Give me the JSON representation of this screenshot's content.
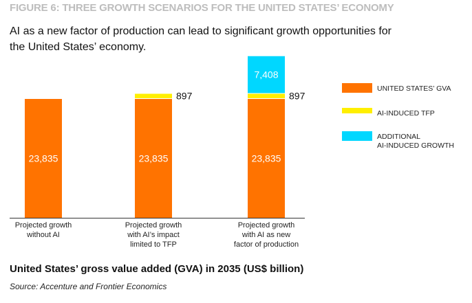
{
  "figure_label": "FIGURE 6: THREE GROWTH SCENARIOS FOR THE UNITED STATES’ ECONOMY",
  "subtitle": "AI as a new factor of production can lead to significant growth opportunities for the United States’ economy.",
  "chart_data": {
    "type": "bar",
    "stacked": true,
    "title": "United States’ gross value added (GVA) in 2035 (US$ billion)",
    "categories": [
      [
        "Projected growth",
        "without AI"
      ],
      [
        "Projected growth",
        "with AI’s impact",
        "limited to TFP"
      ],
      [
        "Projected growth",
        "with AI as new",
        "factor of production"
      ]
    ],
    "series": [
      {
        "name": "UNITED STATES’ GVA",
        "color": "#ff7300",
        "values": [
          23835,
          23835,
          23835
        ],
        "labels": [
          "23,835",
          "23,835",
          "23,835"
        ]
      },
      {
        "name": "AI-INDUCED TFP",
        "color": "#ffef00",
        "values": [
          0,
          897,
          897
        ],
        "labels": [
          "",
          "897",
          "897"
        ]
      },
      {
        "name": "ADDITIONAL AI-INDUCED GROWTH",
        "color": "#00d7ff",
        "values": [
          0,
          0,
          7408
        ],
        "labels": [
          "",
          "",
          "7,408"
        ]
      }
    ],
    "legend_lines": [
      [
        "UNITED STATES’ GVA"
      ],
      [
        "AI-INDUCED TFP"
      ],
      [
        "ADDITIONAL",
        "AI-INDUCED GROWTH"
      ]
    ],
    "legend_position": "right",
    "grid": false
  },
  "source": "Source: Accenture and Frontier Economics"
}
